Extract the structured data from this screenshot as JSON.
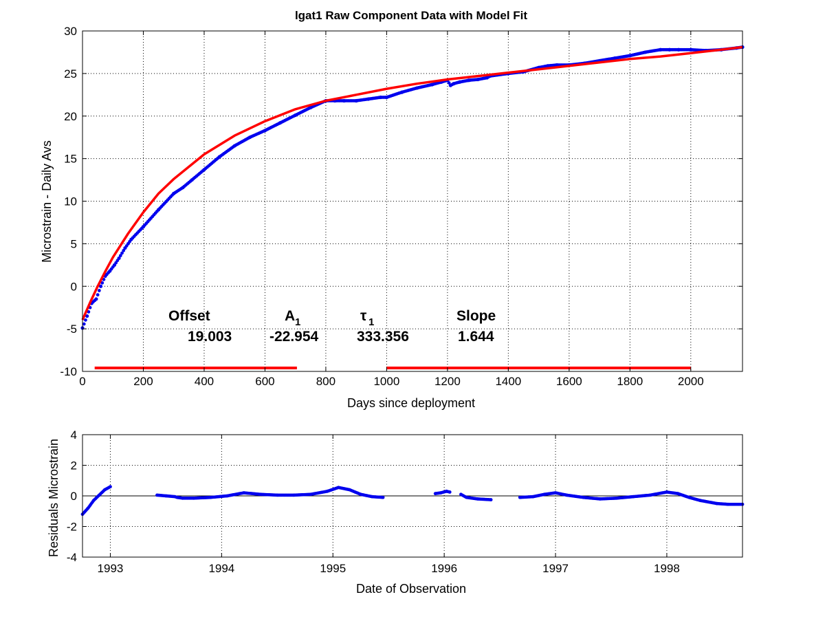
{
  "figure": {
    "title": "lgat1  Raw Component Data with Model Fit",
    "background": "#ffffff"
  },
  "parameters": {
    "offset_label": "Offset",
    "offset_value": "19.003",
    "a1_label": "A",
    "a1_sub": "1",
    "a1_value": "-22.954",
    "tau1_label": "τ",
    "tau1_sub": "1",
    "tau1_value": "333.356",
    "slope_label": "Slope",
    "slope_value": "1.644"
  },
  "colors": {
    "data": "#0000ee",
    "model": "#ff0000",
    "fit_range": "#ff0000",
    "grid": "#000000",
    "zero_line": "#000000"
  },
  "chart_data": [
    {
      "type": "scatter",
      "title": "lgat1  Raw Component Data with Model Fit",
      "xlabel": "Days since deployment",
      "ylabel": "Microstrain - Daily Avs",
      "xlim": [
        0,
        2170
      ],
      "ylim": [
        -10,
        30
      ],
      "xticks": [
        0,
        200,
        400,
        600,
        800,
        1000,
        1200,
        1400,
        1600,
        1800,
        2000
      ],
      "yticks": [
        -10,
        -5,
        0,
        5,
        10,
        15,
        20,
        25,
        30
      ],
      "grid": true,
      "fit_ranges": [
        [
          40,
          705
        ],
        [
          1000,
          2000
        ]
      ],
      "fit_range_y": -9.6,
      "series": [
        {
          "type": "scatter",
          "color": "#0000ee",
          "x": [
            0,
            15,
            30,
            45,
            60,
            75,
            90,
            105,
            120,
            140,
            160,
            200,
            250,
            300,
            330,
            360,
            400,
            450,
            500,
            550,
            600,
            650,
            700,
            750,
            800,
            830,
            860,
            900,
            940,
            980,
            1000,
            1050,
            1100,
            1150,
            1180,
            1200,
            1210,
            1220,
            1240,
            1270,
            1300,
            1330,
            1340,
            1400,
            1450,
            1500,
            1530,
            1560,
            1600,
            1650,
            1700,
            1750,
            1800,
            1850,
            1900,
            1930,
            1960,
            2000,
            2050,
            2100,
            2150,
            2170
          ],
          "y": [
            -4.9,
            -3.5,
            -2.0,
            -1.5,
            0.0,
            1.2,
            1.8,
            2.5,
            3.3,
            4.5,
            5.5,
            7.0,
            9.0,
            10.9,
            11.6,
            12.5,
            13.7,
            15.2,
            16.5,
            17.5,
            18.3,
            19.2,
            20.1,
            21.0,
            21.8,
            21.8,
            21.8,
            21.8,
            22.0,
            22.2,
            22.2,
            22.8,
            23.3,
            23.7,
            24.0,
            24.2,
            23.6,
            23.8,
            24.0,
            24.2,
            24.3,
            24.5,
            24.7,
            25.0,
            25.2,
            25.7,
            25.9,
            26.0,
            26.0,
            26.2,
            26.5,
            26.8,
            27.1,
            27.5,
            27.8,
            27.8,
            27.8,
            27.8,
            27.7,
            27.8,
            28.0,
            28.1
          ]
        },
        {
          "type": "line",
          "color": "#ff0000",
          "x": [
            0,
            25,
            50,
            75,
            100,
            150,
            200,
            250,
            300,
            400,
            500,
            600,
            700,
            800,
            900,
            1000,
            1100,
            1200,
            1300,
            1400,
            1500,
            1600,
            1700,
            1800,
            1900,
            2000,
            2100,
            2170
          ],
          "y": [
            -3.95,
            -1.9,
            0.0,
            1.75,
            3.4,
            6.2,
            8.7,
            10.9,
            12.6,
            15.5,
            17.7,
            19.4,
            20.8,
            21.8,
            22.5,
            23.2,
            23.8,
            24.3,
            24.7,
            25.1,
            25.5,
            25.9,
            26.3,
            26.7,
            27.0,
            27.4,
            27.8,
            28.1
          ]
        }
      ]
    },
    {
      "type": "scatter",
      "title": "",
      "xlabel": "Date of Observation",
      "ylabel": "Residuals Microstrain",
      "xlim": [
        1992.75,
        1998.68
      ],
      "ylim": [
        -4,
        4
      ],
      "xticks": [
        1993,
        1994,
        1995,
        1996,
        1997,
        1998
      ],
      "xtick_labels": [
        "1993",
        "1994",
        "1995",
        "1996",
        "1997",
        "1998"
      ],
      "yticks": [
        -4,
        -2,
        0,
        2,
        4
      ],
      "grid": true,
      "zero_line": true,
      "segments": [
        {
          "x": [
            1992.75,
            1992.8,
            1992.85,
            1992.9,
            1992.95,
            1993.0
          ],
          "y": [
            -1.2,
            -0.8,
            -0.3,
            0.05,
            0.4,
            0.6
          ]
        },
        {
          "x": [
            1993.42,
            1993.5,
            1993.58,
            1993.6,
            1993.65,
            1993.75,
            1993.9,
            1994.05,
            1994.2,
            1994.35,
            1994.5,
            1994.65,
            1994.8,
            1994.95,
            1995.05,
            1995.15,
            1995.25,
            1995.35,
            1995.45
          ],
          "y": [
            0.05,
            0.0,
            -0.05,
            -0.1,
            -0.15,
            -0.15,
            -0.1,
            0.0,
            0.2,
            0.1,
            0.05,
            0.05,
            0.1,
            0.3,
            0.55,
            0.4,
            0.1,
            -0.05,
            -0.1
          ]
        },
        {
          "x": [
            1995.92,
            1995.97,
            1996.02,
            1996.05
          ],
          "y": [
            0.15,
            0.2,
            0.3,
            0.25
          ]
        },
        {
          "x": [
            1996.15,
            1996.2,
            1996.3,
            1996.42
          ],
          "y": [
            0.1,
            -0.1,
            -0.2,
            -0.25
          ]
        },
        {
          "x": [
            1996.68,
            1996.8,
            1996.9,
            1997.0,
            1997.1,
            1997.25,
            1997.4,
            1997.55,
            1997.7,
            1997.85,
            1998.0,
            1998.1,
            1998.2,
            1998.3,
            1998.45,
            1998.55,
            1998.68
          ],
          "y": [
            -0.1,
            -0.05,
            0.1,
            0.2,
            0.05,
            -0.1,
            -0.2,
            -0.15,
            -0.05,
            0.05,
            0.25,
            0.15,
            -0.1,
            -0.3,
            -0.5,
            -0.55,
            -0.55
          ]
        }
      ]
    }
  ]
}
